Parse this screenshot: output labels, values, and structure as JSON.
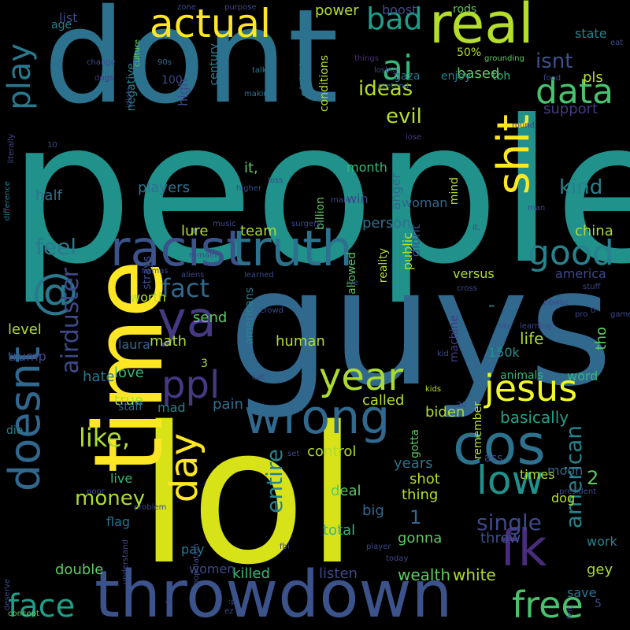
{
  "words": [
    {
      "text": "people",
      "color": "#21918c",
      "size": 250,
      "dir": "h"
    },
    {
      "text": "guys",
      "color": "#31688e",
      "size": 205,
      "dir": "h"
    },
    {
      "text": "dont",
      "color": "#2c728e",
      "size": 165,
      "dir": "h"
    },
    {
      "text": "lol",
      "color": "#d8e219",
      "size": 240,
      "dir": "h"
    },
    {
      "text": "time",
      "color": "#fde725",
      "size": 120,
      "dir": "v"
    },
    {
      "text": "throwdown",
      "color": "#3b528b",
      "size": 82,
      "dir": "h"
    },
    {
      "text": "racist",
      "color": "#3b528b",
      "size": 62,
      "dir": "h"
    },
    {
      "text": "truth",
      "color": "#2c728e",
      "size": 62,
      "dir": "h"
    },
    {
      "text": "wrong",
      "color": "#31688e",
      "size": 60,
      "dir": "h"
    },
    {
      "text": "real",
      "color": "#b5de2b",
      "size": 70,
      "dir": "h"
    },
    {
      "text": "actual",
      "color": "#fde725",
      "size": 50,
      "dir": "h"
    },
    {
      "text": "cos",
      "color": "#2c728e",
      "size": 70,
      "dir": "h"
    },
    {
      "text": "jesus",
      "color": "#f0f921",
      "size": 46,
      "dir": "h"
    },
    {
      "text": "year",
      "color": "#addc30",
      "size": 48,
      "dir": "h"
    },
    {
      "text": "low",
      "color": "#21918c",
      "size": 50,
      "dir": "h"
    },
    {
      "text": "fk",
      "color": "#472d7b",
      "size": 64,
      "dir": "h"
    },
    {
      "text": "free",
      "color": "#4ac16d",
      "size": 46,
      "dir": "h"
    },
    {
      "text": "face",
      "color": "#1f9e89",
      "size": 40,
      "dir": "h"
    },
    {
      "text": "ya",
      "color": "#443983",
      "size": 62,
      "dir": "h"
    },
    {
      "text": "ppl",
      "color": "#443a83",
      "size": 48,
      "dir": "h"
    },
    {
      "text": "good",
      "color": "#26828e",
      "size": 44,
      "dir": "h"
    },
    {
      "text": "data",
      "color": "#4ac16d",
      "size": 44,
      "dir": "h"
    },
    {
      "text": "ai",
      "color": "#35b779",
      "size": 44,
      "dir": "h"
    },
    {
      "text": "bad",
      "color": "#1f9e89",
      "size": 38,
      "dir": "h"
    },
    {
      "text": "shit",
      "color": "#fde725",
      "size": 56,
      "dir": "v"
    },
    {
      "text": "@",
      "color": "#2a788e",
      "size": 60,
      "dir": "h"
    },
    {
      "text": "doesnt",
      "color": "#31688e",
      "size": 54,
      "dir": "v"
    },
    {
      "text": "day",
      "color": "#fde725",
      "size": 48,
      "dir": "v"
    },
    {
      "text": "play",
      "color": "#2a788e",
      "size": 40,
      "dir": "v"
    },
    {
      "text": "airduster",
      "color": "#3e4989",
      "size": 30,
      "dir": "v"
    },
    {
      "text": "like,",
      "color": "#addc30",
      "size": 32,
      "dir": "h"
    },
    {
      "text": "fact",
      "color": "#31688e",
      "size": 32,
      "dir": "h"
    },
    {
      "text": "kind",
      "color": "#26828e",
      "size": 26,
      "dir": "h"
    },
    {
      "text": "ideas",
      "color": "#b5de2b",
      "size": 26,
      "dir": "h"
    },
    {
      "text": "evil",
      "color": "#b5de2b",
      "size": 26,
      "dir": "h"
    },
    {
      "text": "feel",
      "color": "#2a788e",
      "size": 28,
      "dir": "h"
    },
    {
      "text": "isnt",
      "color": "#3b528b",
      "size": 26,
      "dir": "h"
    },
    {
      "text": "money",
      "color": "#addc30",
      "size": 26,
      "dir": "h"
    },
    {
      "text": "single",
      "color": "#3e4989",
      "size": 28,
      "dir": "h"
    },
    {
      "text": "american",
      "color": "#26828e",
      "size": 28,
      "dir": "v"
    },
    {
      "text": "entire",
      "color": "#26828e",
      "size": 28,
      "dir": "v"
    },
    {
      "text": "basically",
      "color": "#1fa187",
      "size": 20,
      "dir": "h"
    },
    {
      "text": "wealth",
      "color": "#5ec962",
      "size": 20,
      "dir": "h"
    },
    {
      "text": "white",
      "color": "#b5de2b",
      "size": 20,
      "dir": "h"
    },
    {
      "text": "listen",
      "color": "#3e4989",
      "size": 18,
      "dir": "h"
    },
    {
      "text": "killed",
      "color": "#35b779",
      "size": 18,
      "dir": "h"
    },
    {
      "text": "gonna",
      "color": "#5ec962",
      "size": 18,
      "dir": "h"
    },
    {
      "text": "throw",
      "color": "#3b528b",
      "size": 18,
      "dir": "h"
    },
    {
      "text": "work",
      "color": "#26828e",
      "size": 16,
      "dir": "h"
    },
    {
      "text": "gey",
      "color": "#addc30",
      "size": 18,
      "dir": "h"
    },
    {
      "text": "save",
      "color": "#2c728e",
      "size": 16,
      "dir": "h"
    },
    {
      "text": "double",
      "color": "#5ec962",
      "size": 18,
      "dir": "h"
    },
    {
      "text": "women",
      "color": "#3e4989",
      "size": 16,
      "dir": "h"
    },
    {
      "text": "pay",
      "color": "#2a788e",
      "size": 16,
      "dir": "h"
    },
    {
      "text": "flag",
      "color": "#2c728e",
      "size": 16,
      "dir": "h"
    },
    {
      "text": "live",
      "color": "#35b779",
      "size": 16,
      "dir": "h"
    },
    {
      "text": "deal",
      "color": "#5ec962",
      "size": 18,
      "dir": "h"
    },
    {
      "text": "big",
      "color": "#31688e",
      "size": 18,
      "dir": "h"
    },
    {
      "text": "total",
      "color": "#35b779",
      "size": 18,
      "dir": "h"
    },
    {
      "text": "thing",
      "color": "#b5de2b",
      "size": 18,
      "dir": "h"
    },
    {
      "text": "shot",
      "color": "#b5de2b",
      "size": 18,
      "dir": "h"
    },
    {
      "text": "years",
      "color": "#2c728e",
      "size": 18,
      "dir": "h"
    },
    {
      "text": "control",
      "color": "#addc30",
      "size": 18,
      "dir": "h"
    },
    {
      "text": "called",
      "color": "#b5de2b",
      "size": 18,
      "dir": "h"
    },
    {
      "text": "biden",
      "color": "#b5de2b",
      "size": 18,
      "dir": "h"
    },
    {
      "text": "times",
      "color": "#addc30",
      "size": 16,
      "dir": "h"
    },
    {
      "text": "moon",
      "color": "#31688e",
      "size": 16,
      "dir": "h"
    },
    {
      "text": "dog",
      "color": "#b5de2b",
      "size": 16,
      "dir": "h"
    },
    {
      "text": "life",
      "color": "#addc30",
      "size": 20,
      "dir": "h"
    },
    {
      "text": "150k",
      "color": "#21918c",
      "size": 16,
      "dir": "h"
    },
    {
      "text": "animals",
      "color": "#35b779",
      "size": 14,
      "dir": "h"
    },
    {
      "text": "word",
      "color": "#35b779",
      "size": 16,
      "dir": "h"
    },
    {
      "text": "tho",
      "color": "#5ec962",
      "size": 18,
      "dir": "v"
    },
    {
      "text": "pain",
      "color": "#2c728e",
      "size": 18,
      "dir": "h"
    },
    {
      "text": "true",
      "color": "#addc30",
      "size": 18,
      "dir": "h"
    },
    {
      "text": "mad",
      "color": "#26828e",
      "size": 16,
      "dir": "h"
    },
    {
      "text": "staff",
      "color": "#31688e",
      "size": 14,
      "dir": "h"
    },
    {
      "text": "love",
      "color": "#35b779",
      "size": 18,
      "dir": "h"
    },
    {
      "text": "math",
      "color": "#addc30",
      "size": 18,
      "dir": "h"
    },
    {
      "text": "human",
      "color": "#b5de2b",
      "size": 18,
      "dir": "h"
    },
    {
      "text": "send",
      "color": "#5ec962",
      "size": 18,
      "dir": "h"
    },
    {
      "text": "laura",
      "color": "#31688e",
      "size": 16,
      "dir": "h"
    },
    {
      "text": "level",
      "color": "#addc30",
      "size": 18,
      "dir": "h"
    },
    {
      "text": "trump",
      "color": "#3e4989",
      "size": 16,
      "dir": "h"
    },
    {
      "text": "hate",
      "color": "#2a788e",
      "size": 18,
      "dir": "h"
    },
    {
      "text": "worth",
      "color": "#b5de2b",
      "size": 16,
      "dir": "h"
    },
    {
      "text": "lure",
      "color": "#b5de2b",
      "size": 18,
      "dir": "h"
    },
    {
      "text": "team",
      "color": "#addc30",
      "size": 18,
      "dir": "h"
    },
    {
      "text": "china",
      "color": "#addc30",
      "size": 18,
      "dir": "h"
    },
    {
      "text": "person",
      "color": "#2c728e",
      "size": 18,
      "dir": "h"
    },
    {
      "text": "versus",
      "color": "#addc30",
      "size": 16,
      "dir": "h"
    },
    {
      "text": "america",
      "color": "#3e4989",
      "size": 16,
      "dir": "h"
    },
    {
      "text": "players",
      "color": "#2c728e",
      "size": 18,
      "dir": "h"
    },
    {
      "text": "half",
      "color": "#2c728e",
      "size": 18,
      "dir": "h"
    },
    {
      "text": "woman",
      "color": "#31688e",
      "size": 16,
      "dir": "h"
    },
    {
      "text": "win",
      "color": "#3e4989",
      "size": 16,
      "dir": "h"
    },
    {
      "text": "month",
      "color": "#35b779",
      "size": 16,
      "dir": "h"
    },
    {
      "text": "it,",
      "color": "#5ec962",
      "size": 18,
      "dir": "h"
    },
    {
      "text": "support",
      "color": "#443983",
      "size": 18,
      "dir": "h"
    },
    {
      "text": "based",
      "color": "#5ec962",
      "size": 18,
      "dir": "h"
    },
    {
      "text": "power",
      "color": "#b5de2b",
      "size": 18,
      "dir": "h"
    },
    {
      "text": "boost",
      "color": "#3e4989",
      "size": 16,
      "dir": "h"
    },
    {
      "text": "state",
      "color": "#26828e",
      "size": 16,
      "dir": "h"
    },
    {
      "text": "pls",
      "color": "#b5de2b",
      "size": 18,
      "dir": "h"
    },
    {
      "text": "rods",
      "color": "#5ec962",
      "size": 14,
      "dir": "h"
    },
    {
      "text": "50%",
      "color": "#b5de2b",
      "size": 14,
      "dir": "h"
    },
    {
      "text": "gaza",
      "color": "#2a788e",
      "size": 14,
      "dir": "h"
    },
    {
      "text": "enjoy",
      "color": "#26828e",
      "size": 14,
      "dir": "h"
    },
    {
      "text": "tbh",
      "color": "#35b779",
      "size": 14,
      "dir": "h"
    },
    {
      "text": "list",
      "color": "#3e4989",
      "size": 16,
      "dir": "h"
    },
    {
      "text": "age",
      "color": "#26828e",
      "size": 14,
      "dir": "h"
    },
    {
      "text": "100",
      "color": "#3e4989",
      "size": 14,
      "dir": "h"
    },
    {
      "text": "negative",
      "color": "#26828e",
      "size": 14,
      "dir": "v"
    },
    {
      "text": "century",
      "color": "#2a788e",
      "size": 14,
      "dir": "v"
    },
    {
      "text": "global",
      "color": "#2c728e",
      "size": 14,
      "dir": "v"
    },
    {
      "text": "conditions",
      "color": "#b5de2b",
      "size": 14,
      "dir": "v"
    },
    {
      "text": "high",
      "color": "#3e4989",
      "size": 16,
      "dir": "v"
    },
    {
      "text": "anger",
      "color": "#31688e",
      "size": 16,
      "dir": "v"
    },
    {
      "text": "public",
      "color": "#b5de2b",
      "size": 16,
      "dir": "v"
    },
    {
      "text": "didnt",
      "color": "#3b528b",
      "size": 16,
      "dir": "v"
    },
    {
      "text": "mind",
      "color": "#addc30",
      "size": 14,
      "dir": "v"
    },
    {
      "text": "billion",
      "color": "#5ec962",
      "size": 14,
      "dir": "v"
    },
    {
      "text": "machine",
      "color": "#443983",
      "size": 14,
      "dir": "v"
    },
    {
      "text": "remember",
      "color": "#b5de2b",
      "size": 14,
      "dir": "v"
    },
    {
      "text": "reality",
      "color": "#b5de2b",
      "size": 14,
      "dir": "v"
    },
    {
      "text": "allowed",
      "color": "#5ec962",
      "size": 14,
      "dir": "v"
    },
    {
      "text": "gotta",
      "color": "#5ec962",
      "size": 14,
      "dir": "v"
    },
    {
      "text": "americans",
      "color": "#26828e",
      "size": 14,
      "dir": "v"
    },
    {
      "text": "ass",
      "color": "#3e4989",
      "size": 14,
      "dir": "h"
    },
    {
      "text": "die",
      "color": "#26828e",
      "size": 14,
      "dir": "h"
    },
    {
      "text": "kids",
      "color": "#b5de2b",
      "size": 10,
      "dir": "h"
    },
    {
      "text": "concept",
      "color": "#5ec962",
      "size": 10,
      "dir": "h"
    },
    {
      "text": "deserve",
      "color": "#3e4989",
      "size": 10,
      "dir": "v"
    },
    {
      "text": "difference",
      "color": "#2a788e",
      "size": 10,
      "dir": "v"
    },
    {
      "text": "literally",
      "color": "#3e4989",
      "size": 10,
      "dir": "v"
    },
    {
      "text": "dogs",
      "color": "#443983",
      "size": 10,
      "dir": "h"
    },
    {
      "text": "change",
      "color": "#3e4989",
      "size": 10,
      "dir": "h"
    },
    {
      "text": "90s",
      "color": "#31688e",
      "size": 10,
      "dir": "h"
    },
    {
      "text": "talk",
      "color": "#2a788e",
      "size": 10,
      "dir": "h"
    },
    {
      "text": "making",
      "color": "#2c728e",
      "size": 10,
      "dir": "h"
    },
    {
      "text": "idiots",
      "color": "#3e4989",
      "size": 10,
      "dir": "v"
    },
    {
      "text": "culture",
      "color": "#5ec962",
      "size": 10,
      "dir": "v"
    },
    {
      "text": "things",
      "color": "#472d7b",
      "size": 10,
      "dir": "h"
    },
    {
      "text": "losing",
      "color": "#3e4989",
      "size": 10,
      "dir": "h"
    },
    {
      "text": "pretend",
      "color": "#31688e",
      "size": 10,
      "dir": "h"
    },
    {
      "text": "round",
      "color": "#443983",
      "size": 10,
      "dir": "h"
    },
    {
      "text": "lose",
      "color": "#443983",
      "size": 10,
      "dir": "h"
    },
    {
      "text": "grounding",
      "color": "#5ec962",
      "size": 10,
      "dir": "h"
    },
    {
      "text": "food",
      "color": "#3e4989",
      "size": 10,
      "dir": "h"
    },
    {
      "text": "eat",
      "color": "#3e4989",
      "size": 10,
      "dir": "h"
    },
    {
      "text": "zone",
      "color": "#3e4989",
      "size": 10,
      "dir": "h"
    },
    {
      "text": "purpose",
      "color": "#3e4989",
      "size": 10,
      "dir": "h"
    },
    {
      "text": "10",
      "color": "#3e4989",
      "size": 10,
      "dir": "h"
    },
    {
      "text": "loss",
      "color": "#3e4989",
      "size": 10,
      "dir": "h"
    },
    {
      "text": "higher",
      "color": "#3e4989",
      "size": 10,
      "dir": "h"
    },
    {
      "text": "main",
      "color": "#3e4989",
      "size": 10,
      "dir": "h"
    },
    {
      "text": "music",
      "color": "#3e4989",
      "size": 10,
      "dir": "h"
    },
    {
      "text": "surgery",
      "color": "#3e4989",
      "size": 10,
      "dir": "h"
    },
    {
      "text": "man",
      "color": "#3e4989",
      "size": 10,
      "dir": "h"
    },
    {
      "text": "it.",
      "color": "#3e4989",
      "size": 10,
      "dir": "h"
    },
    {
      "text": "hamas",
      "color": "#3e4989",
      "size": 10,
      "dir": "h"
    },
    {
      "text": "remain",
      "color": "#3e4989",
      "size": 10,
      "dir": "h"
    },
    {
      "text": "aliens",
      "color": "#3e4989",
      "size": 10,
      "dir": "h"
    },
    {
      "text": "learned",
      "color": "#3e4989",
      "size": 10,
      "dir": "h"
    },
    {
      "text": "crowd",
      "color": "#3e4989",
      "size": 10,
      "dir": "h"
    },
    {
      "text": "ive",
      "color": "#3e4989",
      "size": 10,
      "dir": "h"
    },
    {
      "text": "cross",
      "color": "#3e4989",
      "size": 10,
      "dir": "h"
    },
    {
      "text": "strays",
      "color": "#3e4989",
      "size": 14,
      "dir": "v"
    },
    {
      "text": "newbs",
      "color": "#3e4989",
      "size": 10,
      "dir": "h"
    },
    {
      "text": "stuff",
      "color": "#3e4989",
      "size": 10,
      "dir": "h"
    },
    {
      "text": "game",
      "color": "#3e4989",
      "size": 10,
      "dir": "h"
    },
    {
      "text": "pro",
      "color": "#3e4989",
      "size": 10,
      "dir": "h"
    },
    {
      "text": "nice",
      "color": "#3e4989",
      "size": 10,
      "dir": "h"
    },
    {
      "text": "learning",
      "color": "#3e4989",
      "size": 10,
      "dir": "h"
    },
    {
      "text": "cat",
      "color": "#3e4989",
      "size": 10,
      "dir": "h"
    },
    {
      "text": "kid",
      "color": "#3e4989",
      "size": 10,
      "dir": "h"
    },
    {
      "text": "20",
      "color": "#3e4989",
      "size": 10,
      "dir": "h"
    },
    {
      "text": "set",
      "color": "#3e4989",
      "size": 10,
      "dir": "h"
    },
    {
      "text": "president",
      "color": "#3e4989",
      "size": 10,
      "dir": "h"
    },
    {
      "text": "poor",
      "color": "#3e4989",
      "size": 10,
      "dir": "h"
    },
    {
      "text": "problem",
      "color": "#3e4989",
      "size": 10,
      "dir": "h"
    },
    {
      "text": "understand",
      "color": "#3e4989",
      "size": 10,
      "dir": "v"
    },
    {
      "text": "population",
      "color": "#3e4989",
      "size": 10,
      "dir": "v"
    },
    {
      "text": "fbi",
      "color": "#3e4989",
      "size": 10,
      "dir": "h"
    },
    {
      "text": "player",
      "color": "#3e4989",
      "size": 10,
      "dir": "h"
    },
    {
      "text": "today",
      "color": "#3e4989",
      "size": 10,
      "dir": "h"
    },
    {
      "text": ":p",
      "color": "#3e4989",
      "size": 10,
      "dir": "h"
    },
    {
      "text": "ez",
      "color": "#3e4989",
      "size": 10,
      "dir": "h"
    },
    {
      "text": "felt",
      "color": "#3e4989",
      "size": 10,
      "dir": "v"
    },
    {
      "text": "5",
      "color": "#3e4989",
      "size": 14,
      "dir": "h"
    },
    {
      "text": "4",
      "color": "#3e4989",
      "size": 10,
      "dir": "h"
    },
    {
      "text": "3",
      "color": "#addc30",
      "size": 14,
      "dir": "h"
    },
    {
      "text": "2",
      "color": "#5ec962",
      "size": 24,
      "dir": "h"
    },
    {
      "text": "1",
      "color": "#31688e",
      "size": 24,
      "dir": "h"
    },
    {
      "text": "0",
      "color": "#3e4989",
      "size": 10,
      "dir": "h"
    },
    {
      "text": "-",
      "color": "#2a788e",
      "size": 24,
      "dir": "h"
    }
  ]
}
